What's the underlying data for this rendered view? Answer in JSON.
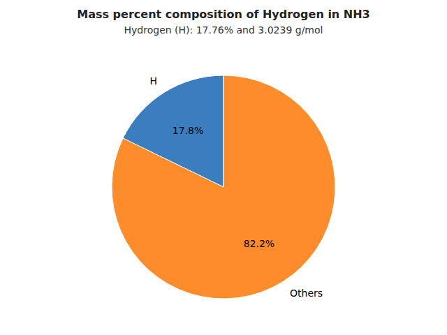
{
  "chart_data": {
    "type": "pie",
    "title": "Mass percent composition of Hydrogen in NH3",
    "subtitle": "Hydrogen (H): 17.76% and 3.0239 g/mol",
    "categories": [
      "H",
      "Others"
    ],
    "values": [
      17.8,
      82.2
    ],
    "value_labels": [
      "17.8%",
      "82.2%"
    ],
    "colors": [
      "#3a7ebf",
      "#ff8c2a"
    ],
    "data_labels": true
  }
}
